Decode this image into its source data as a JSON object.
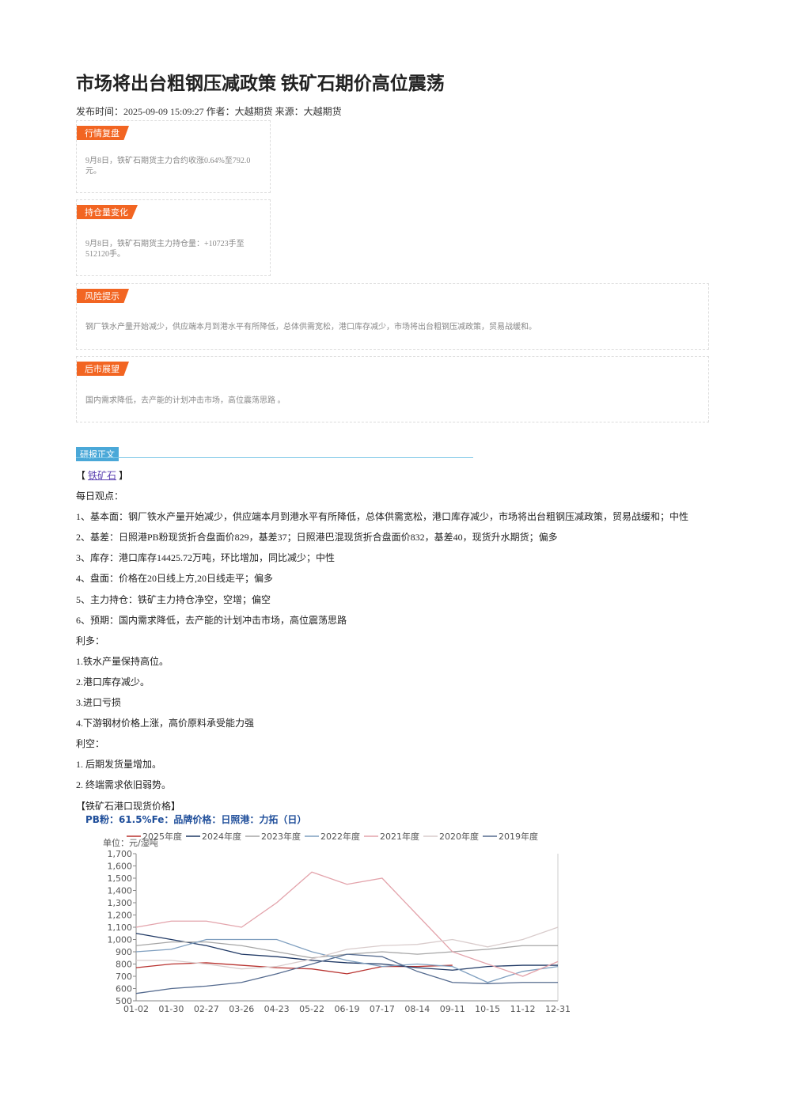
{
  "header": {
    "title": "市场将出台粗钢压减政策 铁矿石期价高位震荡",
    "meta": "发布时间：2025-09-09 15:09:27 作者：大越期货 来源：大越期货"
  },
  "sections": [
    {
      "title": "行情复盘",
      "text": "9月8日，铁矿石期货主力合约收涨0.64%至792.0元。"
    },
    {
      "title": "持仓量变化",
      "text": "9月8日，铁矿石期货主力持仓量：+10723手至512120手。"
    },
    {
      "title": "风险提示",
      "text": "钢厂铁水产量开始减少，供应端本月到港水平有所降低，总体供需宽松，港口库存减少，市场将出台粗钢压减政策，贸易战缓和。"
    },
    {
      "title": "后市展望",
      "text": "国内需求降低，去产能的计划冲击市场，高位震荡思路 。"
    }
  ],
  "report": {
    "tag": "研报正文",
    "bracket_left": "【",
    "link": "铁矿石",
    "bracket_right": "】",
    "paragraphs": [
      "每日观点：",
      "1、基本面：钢厂铁水产量开始减少，供应端本月到港水平有所降低，总体供需宽松，港口库存减少，市场将出台粗钢压减政策，贸易战缓和；中性",
      "2、基差：日照港PB粉现货折合盘面价829，基差37；日照港巴混现货折合盘面价832，基差40，现货升水期货；偏多",
      "3、库存：港口库存14425.72万吨，环比增加，同比减少；中性",
      "4、盘面：价格在20日线上方,20日线走平；偏多",
      "5、主力持仓：铁矿主力持仓净空，空增；偏空",
      "6、预期：国内需求降低，去产能的计划冲击市场，高位震荡思路",
      "利多：",
      "1.铁水产量保持高位。",
      "2.港口库存减少。",
      "3.进口亏损",
      "4.下游钢材价格上涨，高价原料承受能力强",
      "利空：",
      "1. 后期发货量增加。",
      "2. 终端需求依旧弱势。"
    ],
    "chart_heading": "【铁矿石港口现货价格】"
  },
  "chart_data": {
    "type": "line",
    "title": "PB粉：61.5%Fe：品牌价格：日照港：力拓（日）",
    "unit": "单位：元/湿吨",
    "categories": [
      "01-02",
      "01-30",
      "02-27",
      "03-26",
      "04-23",
      "05-22",
      "06-19",
      "07-17",
      "08-14",
      "09-11",
      "10-15",
      "11-12",
      "12-31"
    ],
    "ylim": [
      500,
      1700
    ],
    "yticks": [
      500,
      600,
      700,
      800,
      900,
      {
        "value": 1000,
        "label": "1,000"
      },
      {
        "value": 1100,
        "label": "1,100"
      },
      {
        "value": 1200,
        "label": "1,200"
      },
      {
        "value": 1300,
        "label": "1,300"
      },
      {
        "value": 1400,
        "label": "1,400"
      },
      {
        "value": 1500,
        "label": "1,500"
      },
      {
        "value": 1600,
        "label": "1,600"
      },
      {
        "value": 1700,
        "label": "1,700"
      }
    ],
    "series": [
      {
        "name": "2025年度",
        "color": "#b8322f",
        "values": [
          770,
          800,
          810,
          790,
          770,
          760,
          720,
          780,
          780,
          790,
          null,
          null,
          null
        ]
      },
      {
        "name": "2024年度",
        "color": "#1f3864",
        "values": [
          1050,
          1000,
          950,
          880,
          860,
          830,
          810,
          800,
          770,
          750,
          780,
          790,
          790
        ]
      },
      {
        "name": "2023年度",
        "color": "#a6a6a6",
        "values": [
          950,
          980,
          980,
          950,
          900,
          850,
          880,
          900,
          880,
          900,
          920,
          950,
          950
        ]
      },
      {
        "name": "2022年度",
        "color": "#7f9fbf",
        "values": [
          900,
          920,
          1000,
          1000,
          1000,
          900,
          830,
          780,
          800,
          780,
          650,
          740,
          780
        ]
      },
      {
        "name": "2021年度",
        "color": "#e3a3ab",
        "values": [
          1100,
          1150,
          1150,
          1100,
          1300,
          1550,
          1450,
          1500,
          1200,
          900,
          800,
          700,
          820
        ]
      },
      {
        "name": "2020年度",
        "color": "#d9cccc",
        "values": [
          830,
          830,
          800,
          760,
          780,
          840,
          920,
          950,
          960,
          1000,
          940,
          1000,
          1100
        ]
      },
      {
        "name": "2019年度",
        "color": "#556b8f",
        "values": [
          560,
          600,
          620,
          650,
          720,
          800,
          880,
          860,
          740,
          650,
          640,
          650,
          650
        ]
      }
    ]
  }
}
